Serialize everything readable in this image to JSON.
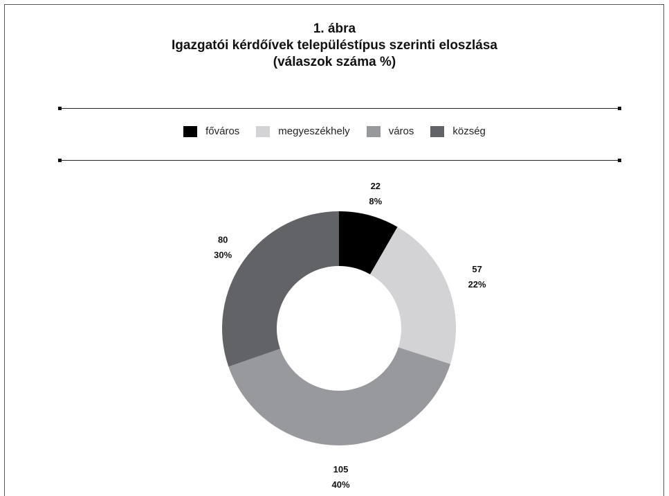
{
  "title": {
    "line1": "1. ábra",
    "line2": "Igazgatói kérdőívek településtípus szerinti eloszlása",
    "line3": "(válaszok száma %)"
  },
  "chart_data": {
    "type": "pie",
    "donut": true,
    "categories": [
      "főváros",
      "megyeszékhely",
      "város",
      "község"
    ],
    "values": [
      22,
      57,
      105,
      80
    ],
    "percents": [
      "8%",
      "22%",
      "40%",
      "30%"
    ],
    "colors": [
      "#000000",
      "#d3d3d5",
      "#98999c",
      "#626366"
    ],
    "legend_position": "top",
    "title": "Igazgatói kérdőívek településtípus szerinti eloszlása"
  }
}
